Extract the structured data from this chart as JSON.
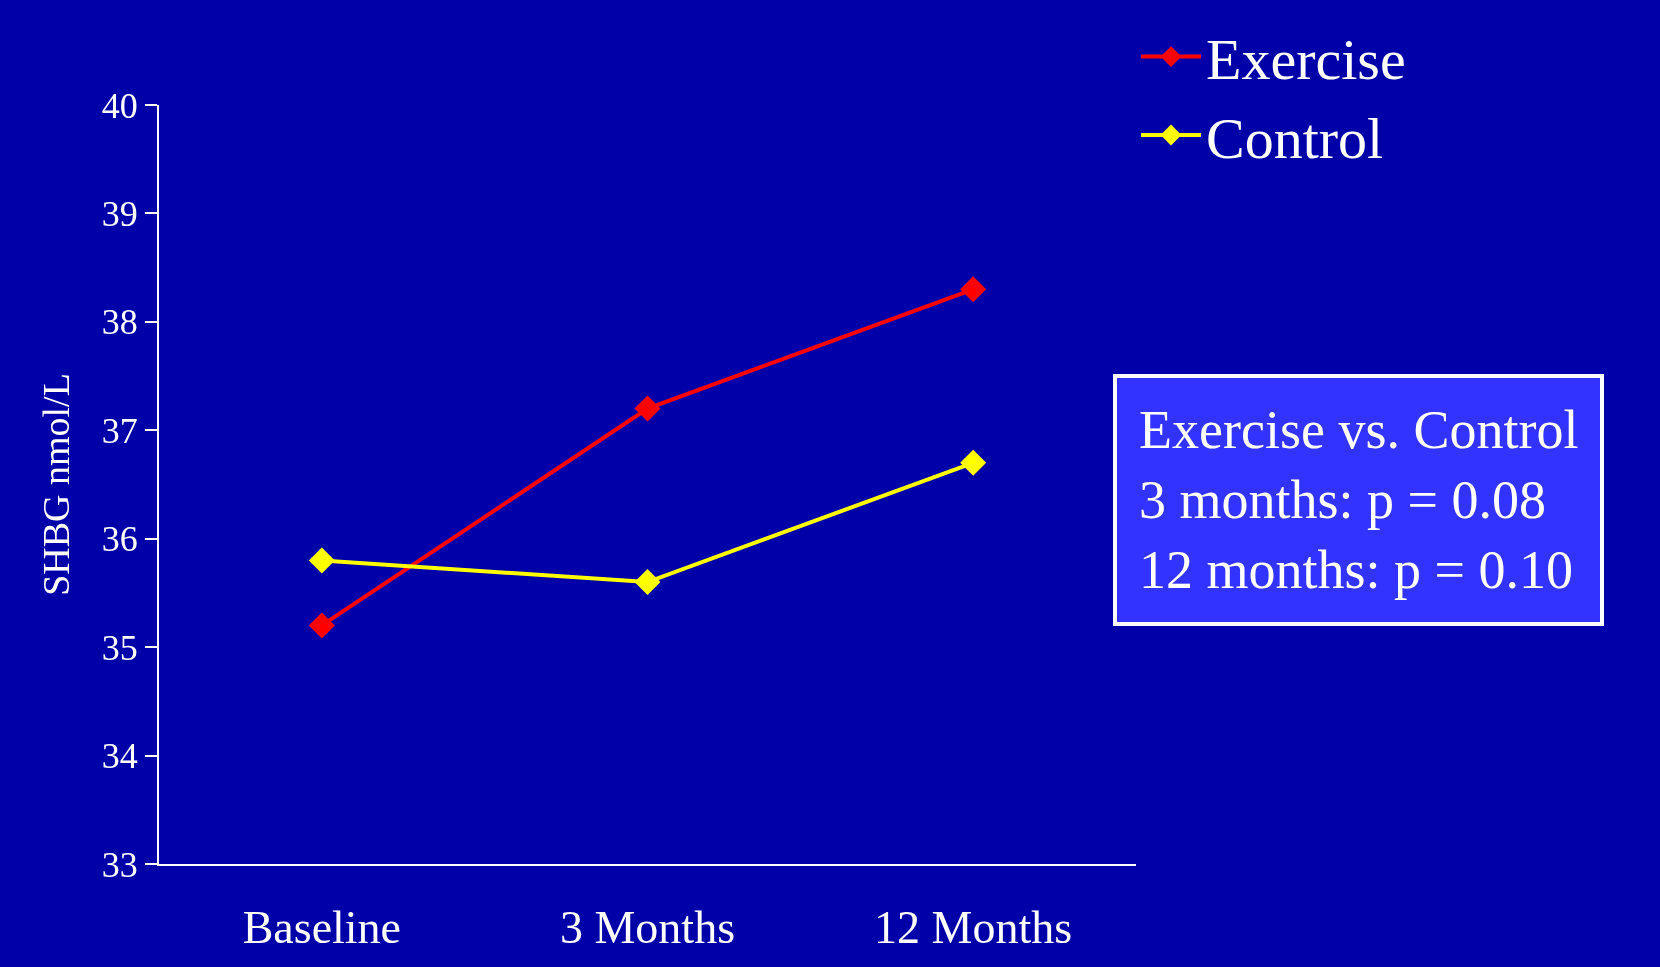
{
  "chart_data": {
    "type": "line",
    "ylabel": "SHBG nmol/L",
    "categories": [
      "Baseline",
      "3 Months",
      "12 Months"
    ],
    "series": [
      {
        "name": "Exercise",
        "color": "#ff0000",
        "values": [
          35.2,
          37.2,
          38.3
        ]
      },
      {
        "name": "Control",
        "color": "#ffff00",
        "values": [
          35.8,
          35.6,
          36.7
        ]
      }
    ],
    "ylim": [
      33,
      40
    ],
    "yticks": [
      33,
      34,
      35,
      36,
      37,
      38,
      39,
      40
    ],
    "grid": false,
    "legend": "top right",
    "marker": "diamond",
    "line_style": "solid",
    "annotations": [
      "Exercise vs. Control\n3 months: p = 0.08\n12 months: p = 0.10"
    ]
  }
}
